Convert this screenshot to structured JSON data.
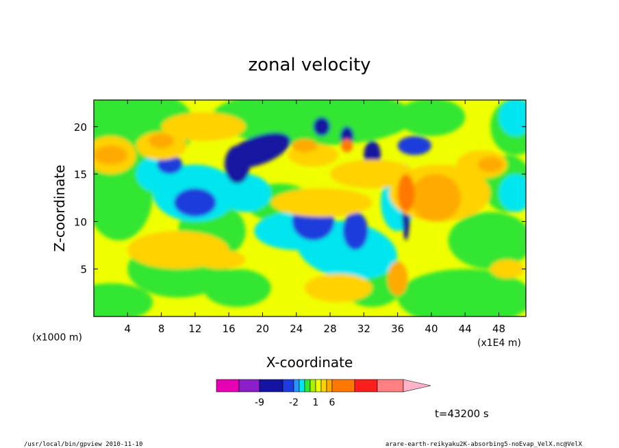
{
  "chart_data": {
    "type": "heatmap",
    "title": "zonal velocity",
    "xlabel": "X-coordinate",
    "ylabel": "Z-coordinate",
    "x_unit": "(x1E4 m)",
    "y_unit": "(x1000 m)",
    "xlim": [
      0,
      51.2
    ],
    "ylim": [
      0,
      22.8
    ],
    "x_ticks": [
      "4",
      "8",
      "12",
      "16",
      "20",
      "24",
      "28",
      "32",
      "36",
      "40",
      "44",
      "48"
    ],
    "x_tick_values": [
      4,
      8,
      12,
      16,
      20,
      24,
      28,
      32,
      36,
      40,
      44,
      48
    ],
    "y_ticks": [
      "5",
      "10",
      "15",
      "20"
    ],
    "y_tick_values": [
      5,
      10,
      15,
      20
    ],
    "colorbar": {
      "colors": [
        "#e600b4",
        "#8c1ec8",
        "#1414a0",
        "#1e3cdc",
        "#2896ff",
        "#00e6f0",
        "#32e632",
        "#aaf000",
        "#f0ff00",
        "#ffd200",
        "#ffaa00",
        "#ff7800",
        "#ff1e1e",
        "#ff8080",
        "#ffb4c8"
      ],
      "labels": [
        "-9",
        "-2",
        "1",
        "6"
      ],
      "label_values": [
        -9,
        -2,
        1,
        6
      ]
    },
    "time_label": "t=43200 s"
  },
  "footer": {
    "left": "/usr/local/bin/gpview  2010-11-10",
    "right": "arare-earth-reikyaku2K-absorbing5-noEvap_VelX.nc@VelX"
  }
}
